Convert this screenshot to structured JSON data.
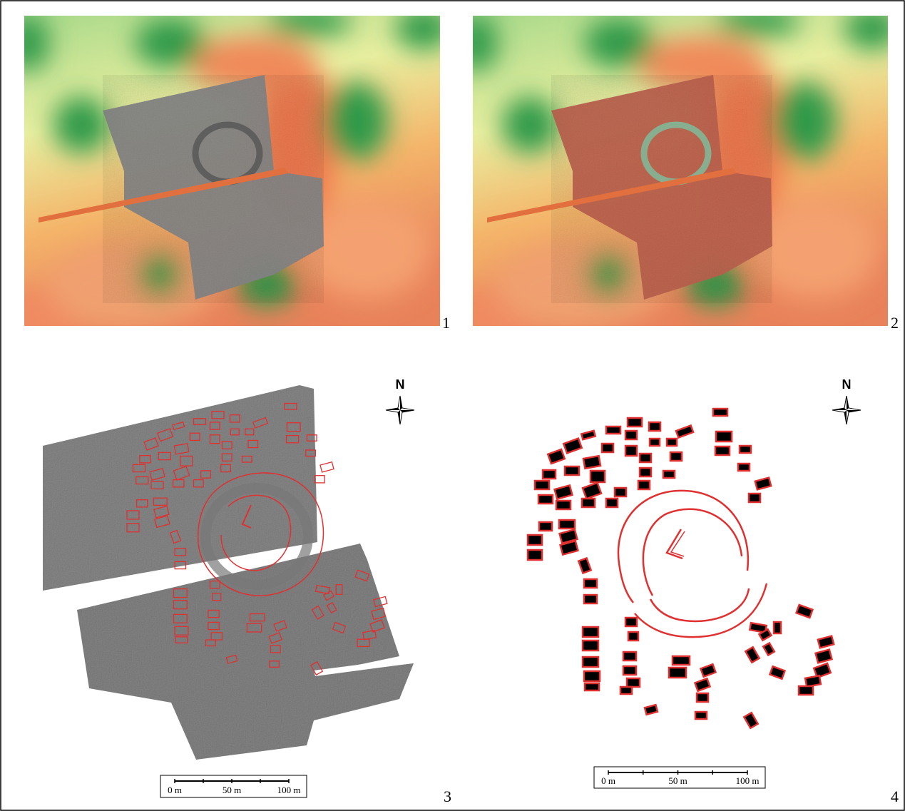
{
  "panels": [
    {
      "label": "1"
    },
    {
      "label": "2"
    },
    {
      "label": "3",
      "north": "N",
      "scale_labels": [
        "0 m",
        "50 m",
        "100 m"
      ]
    },
    {
      "label": "4",
      "north": "N",
      "scale_labels": [
        "0 m",
        "50 m",
        "100 m"
      ]
    }
  ]
}
